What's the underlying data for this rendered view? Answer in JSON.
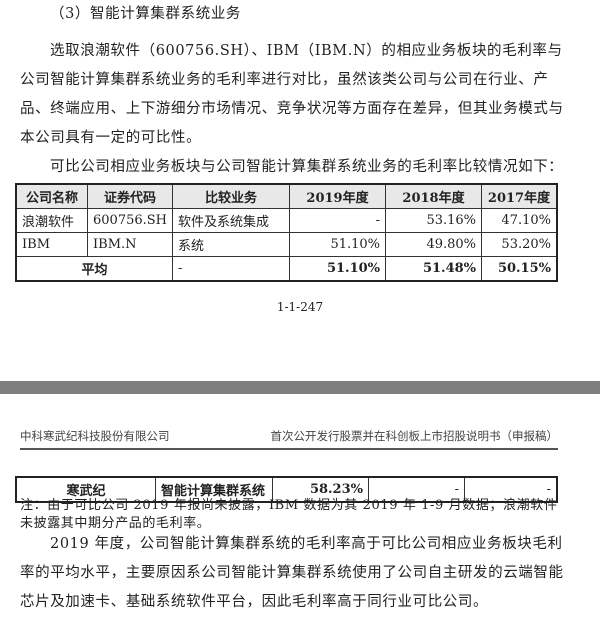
{
  "page1": {
    "section_title": "（3）智能计算集群系统业务",
    "para1": "选取浪潮软件（600756.SH）、IBM（IBM.N）的相应业务板块的毛利率与公司智能计算集群系统业务的毛利率进行对比，虽然该类公司与公司在行业、产品、终端应用、上下游细分市场情况、竞争状况等方面存在差异，但其业务模式与本公司具有一定的可比性。",
    "para2": "可比公司相应业务板块与公司智能计算集群系统业务的毛利率比较情况如下：",
    "table": {
      "headers": [
        "公司名称",
        "证券代码",
        "比较业务",
        "2019年度",
        "2018年度",
        "2017年度"
      ],
      "rows": [
        [
          "浪潮软件",
          "600756.SH",
          "软件及系统集成",
          "-",
          "53.16%",
          "47.10%"
        ],
        [
          "IBM",
          "IBM.N",
          "系统",
          "51.10%",
          "49.80%",
          "53.20%"
        ]
      ],
      "average": [
        "平均",
        "-",
        "51.10%",
        "51.48%",
        "50.15%"
      ]
    },
    "page_number": "1-1-247"
  },
  "page2": {
    "header_left": "中科寒武纪科技股份有限公司",
    "header_right": "首次公开发行股票并在科创板上市招股说明书（申报稿）",
    "table_row": [
      "寒武纪",
      "智能计算集群系统",
      "58.23%",
      "-",
      "-"
    ],
    "note": "注：由于可比公司 2019 年报尚未披露，IBM 数据为其 2019 年 1-9 月数据；浪潮软件未披露其中期分产品的毛利率。",
    "para": "2019 年度，公司智能计算集群系统的毛利率高于可比公司相应业务板块毛利率的平均水平，主要原因系公司智能计算集群系统使用了公司自主研发的云端智能芯片及加速卡、基础系统软件平台，因此毛利率高于同行业可比公司。"
  }
}
